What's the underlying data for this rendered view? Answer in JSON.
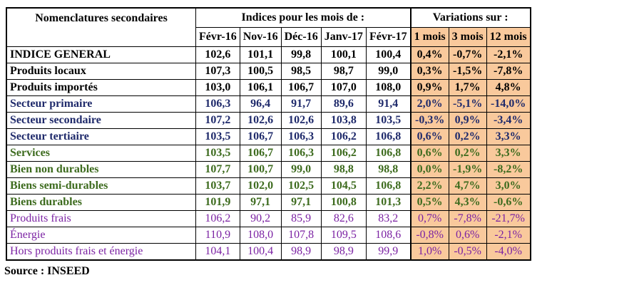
{
  "table": {
    "header_left": "Nomenclatures secondaires",
    "group_indices": "Indices pour les mois de :",
    "group_variations": "Variations sur :",
    "columns": [
      "Févr-16",
      "Nov-16",
      "Déc-16",
      "Janv-17",
      "Févr-17",
      "1 mois",
      "3 mois",
      "12 mois"
    ],
    "variation_background": "#f9c99c",
    "rows": [
      {
        "label": "INDICE GENERAL",
        "color": "#000000",
        "bold": true,
        "values": [
          "102,6",
          "101,1",
          "99,8",
          "100,1",
          "100,4",
          "0,4%",
          "-0,7%",
          "-2,1%"
        ]
      },
      {
        "label": "Produits locaux",
        "color": "#000000",
        "bold": true,
        "values": [
          "107,3",
          "100,5",
          "98,5",
          "98,7",
          "99,0",
          "0,3%",
          "-1,5%",
          "-7,8%"
        ]
      },
      {
        "label": "Produits importés",
        "color": "#000000",
        "bold": true,
        "values": [
          "103,0",
          "106,1",
          "106,7",
          "107,0",
          "108,0",
          "0,9%",
          "1,7%",
          "4,8%"
        ]
      },
      {
        "label": "Secteur primaire",
        "color": "#1f2a6b",
        "bold": true,
        "values": [
          "106,3",
          "96,4",
          "91,7",
          "89,6",
          "91,4",
          "2,0%",
          "-5,1%",
          "-14,0%"
        ]
      },
      {
        "label": "Secteur secondaire",
        "color": "#1f2a6b",
        "bold": true,
        "values": [
          "107,2",
          "102,6",
          "102,6",
          "103,8",
          "103,5",
          "-0,3%",
          "0,9%",
          "-3,4%"
        ]
      },
      {
        "label": "Secteur tertiaire",
        "color": "#1f2a6b",
        "bold": true,
        "values": [
          "103,5",
          "106,7",
          "106,3",
          "106,2",
          "106,8",
          "0,6%",
          "0,2%",
          "3,3%"
        ]
      },
      {
        "label": "Services",
        "color": "#3d6b1e",
        "bold": true,
        "values": [
          "103,5",
          "106,7",
          "106,3",
          "106,2",
          "106,8",
          "0,6%",
          "0,2%",
          "3,3%"
        ]
      },
      {
        "label": "Bien non durables",
        "color": "#3d6b1e",
        "bold": true,
        "values": [
          "107,7",
          "100,7",
          "99,0",
          "98,8",
          "98,8",
          "0,0%",
          "-1,9%",
          "-8,2%"
        ]
      },
      {
        "label": "Biens semi-durables",
        "color": "#3d6b1e",
        "bold": true,
        "values": [
          "103,7",
          "102,0",
          "102,5",
          "104,5",
          "106,8",
          "2,2%",
          "4,7%",
          "3,0%"
        ]
      },
      {
        "label": "Biens durables",
        "color": "#3d6b1e",
        "bold": true,
        "values": [
          "101,9",
          "97,1",
          "97,1",
          "100,8",
          "101,3",
          "0,5%",
          "4,3%",
          "-0,6%"
        ]
      },
      {
        "label": "Produits frais",
        "color": "#7b22a3",
        "bold": false,
        "values": [
          "106,2",
          "90,2",
          "85,9",
          "82,6",
          "83,2",
          "0,7%",
          "-7,8%",
          "-21,7%"
        ]
      },
      {
        "label": "Énergie",
        "color": "#7b22a3",
        "bold": false,
        "values": [
          "110,9",
          "108,0",
          "107,8",
          "109,5",
          "108,6",
          "-0,8%",
          "0,6%",
          "-2,1%"
        ]
      },
      {
        "label": "Hors produits frais et énergie",
        "color": "#7b22a3",
        "bold": false,
        "values": [
          "104,1",
          "100,4",
          "98,9",
          "98,9",
          "99,9",
          "1,0%",
          "-0,5%",
          "-4,0%"
        ]
      }
    ]
  },
  "source": "Source : INSEED"
}
